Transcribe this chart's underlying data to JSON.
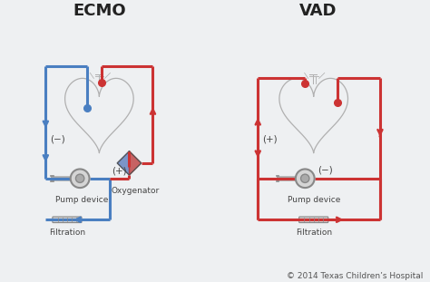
{
  "title_left": "ECMO",
  "title_right": "VAD",
  "copyright": "© 2014 Texas Children’s Hospital",
  "bg_color": "#eef0f2",
  "blue_color": "#4a7fc1",
  "red_color": "#cc3333",
  "gray_color": "#888888",
  "label_ecmo_neg": "(−)",
  "label_ecmo_pos": "(+)",
  "label_vad_pos": "(+)",
  "label_vad_neg": "(−)",
  "label_pump_ecmo": "Pump device",
  "label_oxygenator": "Oxygenator",
  "label_filtration_ecmo": "Filtration",
  "label_pump_vad": "Pump device",
  "label_filtration_vad": "Filtration",
  "title_fontsize": 13,
  "label_fontsize": 7,
  "copyright_fontsize": 6.5
}
